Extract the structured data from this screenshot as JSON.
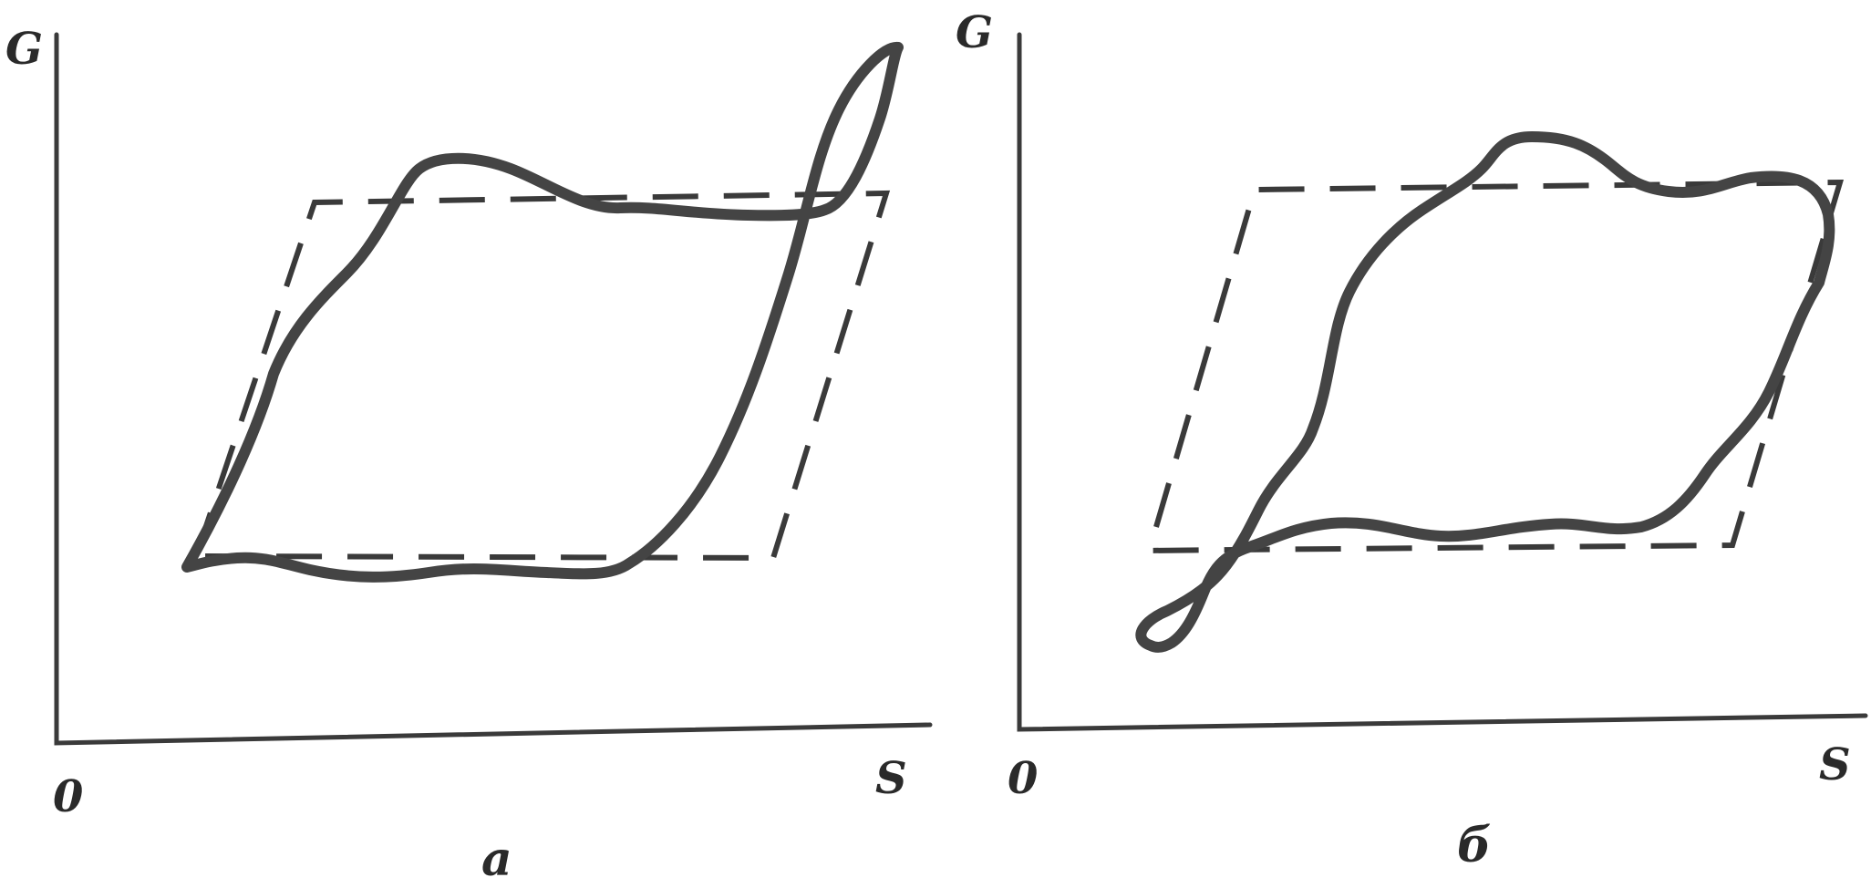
{
  "diagrams": [
    {
      "caption": "а",
      "y_axis_label": "G",
      "x_axis_label": "S",
      "origin_label": "0"
    },
    {
      "caption": "б",
      "y_axis_label": "G",
      "x_axis_label": "S",
      "origin_label": "0"
    }
  ]
}
